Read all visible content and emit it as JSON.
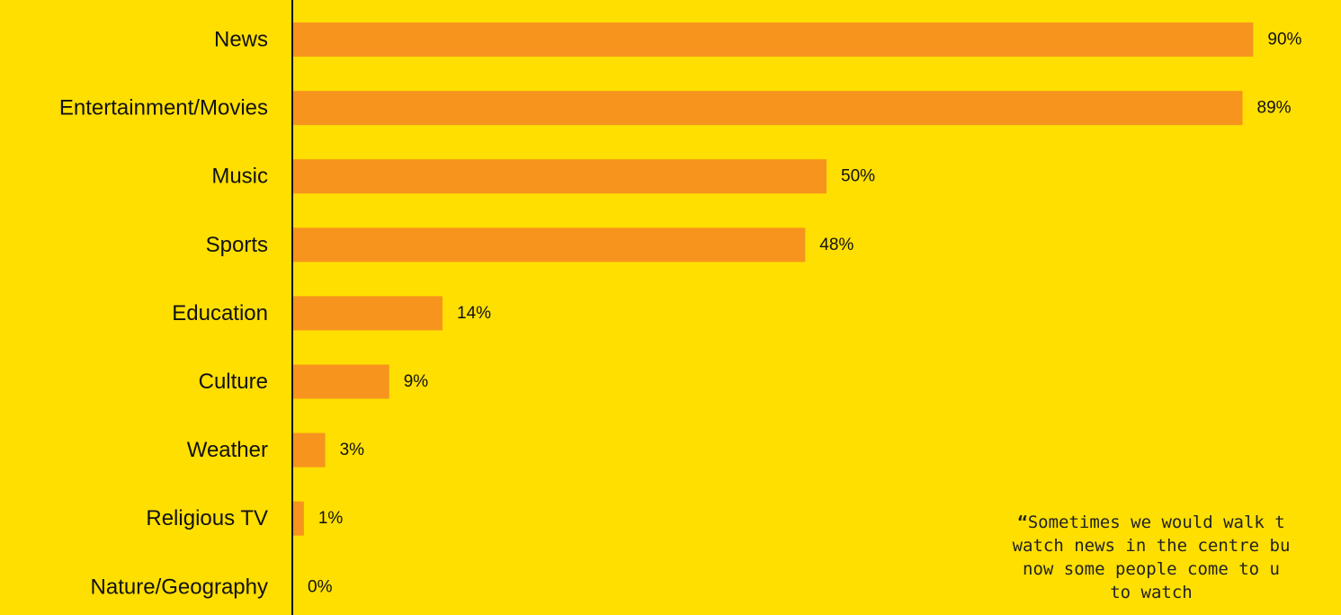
{
  "colors": {
    "background": "#FFDF00",
    "bar": "#F7941D",
    "axis": "#111111",
    "text": "#111111"
  },
  "chart_data": {
    "type": "bar",
    "orientation": "horizontal",
    "categories": [
      "News",
      "Entertainment/Movies",
      "Music",
      "Sports",
      "Education",
      "Culture",
      "Weather",
      "Religious TV",
      "Nature/Geography"
    ],
    "values": [
      90,
      89,
      50,
      48,
      14,
      9,
      3,
      1,
      0
    ],
    "value_labels": [
      "90%",
      "89%",
      "50%",
      "48%",
      "14%",
      "9%",
      "3%",
      "1%",
      "0%"
    ],
    "unit": "%",
    "xlim": [
      0,
      100
    ],
    "grid": false,
    "legend": "none"
  },
  "quote": {
    "open_mark": "“",
    "lines": [
      "Sometimes we would walk t",
      "watch news in the centre bu",
      "now some people come to u",
      "to watch"
    ]
  }
}
